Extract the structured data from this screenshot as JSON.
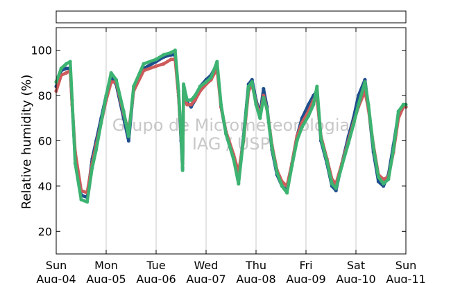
{
  "chart_data": {
    "type": "line",
    "ylabel": "Relative humidity (%)",
    "xlabel": "",
    "ylim": [
      10,
      110
    ],
    "xlim": [
      0,
      7
    ],
    "yticks": [
      20,
      40,
      60,
      80,
      100
    ],
    "xticks": [
      {
        "x": 0,
        "day": "Sun",
        "date": "Aug-04"
      },
      {
        "x": 1,
        "day": "Mon",
        "date": "Aug-05"
      },
      {
        "x": 2,
        "day": "Tue",
        "date": "Aug-06"
      },
      {
        "x": 3,
        "day": "Wed",
        "date": "Aug-07"
      },
      {
        "x": 4,
        "day": "Thu",
        "date": "Aug-08"
      },
      {
        "x": 5,
        "day": "Fri",
        "date": "Aug-09"
      },
      {
        "x": 6,
        "day": "Sat",
        "date": "Aug-10"
      },
      {
        "x": 7,
        "day": "Sun",
        "date": "Aug-11"
      }
    ],
    "grid": "vertical",
    "watermark": [
      "Grupo de Micrometeorologia",
      "IAG / USP"
    ],
    "series": [
      {
        "color": "#1f4e8c",
        "points": [
          [
            0,
            84
          ],
          [
            0.1,
            91
          ],
          [
            0.2,
            92
          ],
          [
            0.28,
            92
          ],
          [
            0.32,
            76
          ],
          [
            0.38,
            52
          ],
          [
            0.5,
            36
          ],
          [
            0.62,
            35
          ],
          [
            0.72,
            52
          ],
          [
            0.8,
            60
          ],
          [
            0.9,
            70
          ],
          [
            1.0,
            80
          ],
          [
            1.1,
            88
          ],
          [
            1.2,
            85
          ],
          [
            1.35,
            70
          ],
          [
            1.45,
            60
          ],
          [
            1.55,
            83
          ],
          [
            1.75,
            92
          ],
          [
            2.0,
            95
          ],
          [
            2.15,
            97
          ],
          [
            2.3,
            98
          ],
          [
            2.38,
            98
          ],
          [
            2.45,
            80
          ],
          [
            2.5,
            60
          ],
          [
            2.53,
            48
          ],
          [
            2.55,
            84
          ],
          [
            2.62,
            77
          ],
          [
            2.7,
            75
          ],
          [
            2.78,
            78
          ],
          [
            2.88,
            84
          ],
          [
            3.0,
            87
          ],
          [
            3.1,
            89
          ],
          [
            3.22,
            94
          ],
          [
            3.3,
            75
          ],
          [
            3.4,
            63
          ],
          [
            3.55,
            52
          ],
          [
            3.65,
            43
          ],
          [
            3.75,
            62
          ],
          [
            3.85,
            85
          ],
          [
            3.92,
            87
          ],
          [
            4.0,
            78
          ],
          [
            4.08,
            72
          ],
          [
            4.15,
            83
          ],
          [
            4.22,
            75
          ],
          [
            4.32,
            56
          ],
          [
            4.42,
            45
          ],
          [
            4.52,
            40
          ],
          [
            4.62,
            38
          ],
          [
            4.72,
            50
          ],
          [
            4.82,
            62
          ],
          [
            4.92,
            70
          ],
          [
            5.05,
            76
          ],
          [
            5.15,
            80
          ],
          [
            5.22,
            82
          ],
          [
            5.3,
            60
          ],
          [
            5.42,
            50
          ],
          [
            5.52,
            40
          ],
          [
            5.6,
            38
          ],
          [
            5.72,
            50
          ],
          [
            5.85,
            62
          ],
          [
            5.95,
            70
          ],
          [
            6.05,
            80
          ],
          [
            6.18,
            87
          ],
          [
            6.25,
            75
          ],
          [
            6.35,
            55
          ],
          [
            6.45,
            42
          ],
          [
            6.55,
            40
          ],
          [
            6.65,
            45
          ],
          [
            6.75,
            58
          ],
          [
            6.85,
            72
          ],
          [
            6.95,
            76
          ],
          [
            7.0,
            75
          ]
        ]
      },
      {
        "color": "#cd5b5b",
        "points": [
          [
            0,
            82
          ],
          [
            0.1,
            89
          ],
          [
            0.2,
            90
          ],
          [
            0.28,
            91
          ],
          [
            0.32,
            76
          ],
          [
            0.38,
            55
          ],
          [
            0.5,
            38
          ],
          [
            0.62,
            37
          ],
          [
            0.72,
            50
          ],
          [
            0.8,
            58
          ],
          [
            0.9,
            68
          ],
          [
            1.0,
            78
          ],
          [
            1.1,
            86
          ],
          [
            1.2,
            86
          ],
          [
            1.35,
            72
          ],
          [
            1.45,
            64
          ],
          [
            1.55,
            82
          ],
          [
            1.75,
            91
          ],
          [
            2.0,
            93
          ],
          [
            2.15,
            94
          ],
          [
            2.3,
            96
          ],
          [
            2.38,
            96
          ],
          [
            2.45,
            80
          ],
          [
            2.5,
            62
          ],
          [
            2.53,
            50
          ],
          [
            2.55,
            80
          ],
          [
            2.62,
            76
          ],
          [
            2.7,
            76
          ],
          [
            2.78,
            78
          ],
          [
            2.88,
            82
          ],
          [
            3.0,
            85
          ],
          [
            3.1,
            87
          ],
          [
            3.22,
            92
          ],
          [
            3.3,
            75
          ],
          [
            3.4,
            64
          ],
          [
            3.55,
            54
          ],
          [
            3.65,
            46
          ],
          [
            3.75,
            60
          ],
          [
            3.85,
            82
          ],
          [
            3.92,
            85
          ],
          [
            4.0,
            77
          ],
          [
            4.08,
            71
          ],
          [
            4.15,
            80
          ],
          [
            4.22,
            74
          ],
          [
            4.32,
            58
          ],
          [
            4.42,
            47
          ],
          [
            4.52,
            42
          ],
          [
            4.62,
            40
          ],
          [
            4.72,
            50
          ],
          [
            4.82,
            62
          ],
          [
            4.92,
            68
          ],
          [
            5.05,
            73
          ],
          [
            5.15,
            78
          ],
          [
            5.22,
            79
          ],
          [
            5.3,
            62
          ],
          [
            5.42,
            52
          ],
          [
            5.52,
            43
          ],
          [
            5.6,
            41
          ],
          [
            5.72,
            50
          ],
          [
            5.85,
            60
          ],
          [
            5.95,
            68
          ],
          [
            6.05,
            75
          ],
          [
            6.18,
            82
          ],
          [
            6.25,
            74
          ],
          [
            6.35,
            58
          ],
          [
            6.45,
            45
          ],
          [
            6.55,
            43
          ],
          [
            6.65,
            44
          ],
          [
            6.75,
            55
          ],
          [
            6.85,
            70
          ],
          [
            6.95,
            75
          ],
          [
            7.0,
            75
          ]
        ]
      },
      {
        "color": "#3cb371",
        "points": [
          [
            0,
            86
          ],
          [
            0.1,
            92
          ],
          [
            0.2,
            94
          ],
          [
            0.28,
            95
          ],
          [
            0.32,
            78
          ],
          [
            0.38,
            50
          ],
          [
            0.5,
            34
          ],
          [
            0.62,
            33
          ],
          [
            0.72,
            48
          ],
          [
            0.8,
            56
          ],
          [
            0.9,
            68
          ],
          [
            1.0,
            80
          ],
          [
            1.1,
            90
          ],
          [
            1.2,
            87
          ],
          [
            1.35,
            73
          ],
          [
            1.45,
            62
          ],
          [
            1.55,
            84
          ],
          [
            1.75,
            94
          ],
          [
            2.0,
            96
          ],
          [
            2.15,
            98
          ],
          [
            2.3,
            99
          ],
          [
            2.38,
            100
          ],
          [
            2.45,
            82
          ],
          [
            2.5,
            62
          ],
          [
            2.53,
            47
          ],
          [
            2.55,
            85
          ],
          [
            2.62,
            78
          ],
          [
            2.7,
            78
          ],
          [
            2.78,
            80
          ],
          [
            2.88,
            84
          ],
          [
            3.0,
            86
          ],
          [
            3.1,
            88
          ],
          [
            3.22,
            95
          ],
          [
            3.3,
            76
          ],
          [
            3.4,
            63
          ],
          [
            3.55,
            52
          ],
          [
            3.65,
            41
          ],
          [
            3.75,
            61
          ],
          [
            3.85,
            84
          ],
          [
            3.92,
            86
          ],
          [
            4.0,
            76
          ],
          [
            4.08,
            70
          ],
          [
            4.15,
            79
          ],
          [
            4.22,
            74
          ],
          [
            4.32,
            57
          ],
          [
            4.42,
            46
          ],
          [
            4.52,
            40
          ],
          [
            4.62,
            37
          ],
          [
            4.72,
            49
          ],
          [
            4.82,
            60
          ],
          [
            4.92,
            66
          ],
          [
            5.05,
            71
          ],
          [
            5.15,
            76
          ],
          [
            5.22,
            84
          ],
          [
            5.3,
            61
          ],
          [
            5.42,
            51
          ],
          [
            5.52,
            41
          ],
          [
            5.6,
            39
          ],
          [
            5.72,
            49
          ],
          [
            5.85,
            59
          ],
          [
            5.95,
            67
          ],
          [
            6.05,
            76
          ],
          [
            6.18,
            86
          ],
          [
            6.25,
            76
          ],
          [
            6.35,
            57
          ],
          [
            6.45,
            44
          ],
          [
            6.55,
            41
          ],
          [
            6.65,
            43
          ],
          [
            6.75,
            56
          ],
          [
            6.85,
            73
          ],
          [
            6.95,
            76
          ],
          [
            7.0,
            76
          ]
        ]
      }
    ]
  }
}
